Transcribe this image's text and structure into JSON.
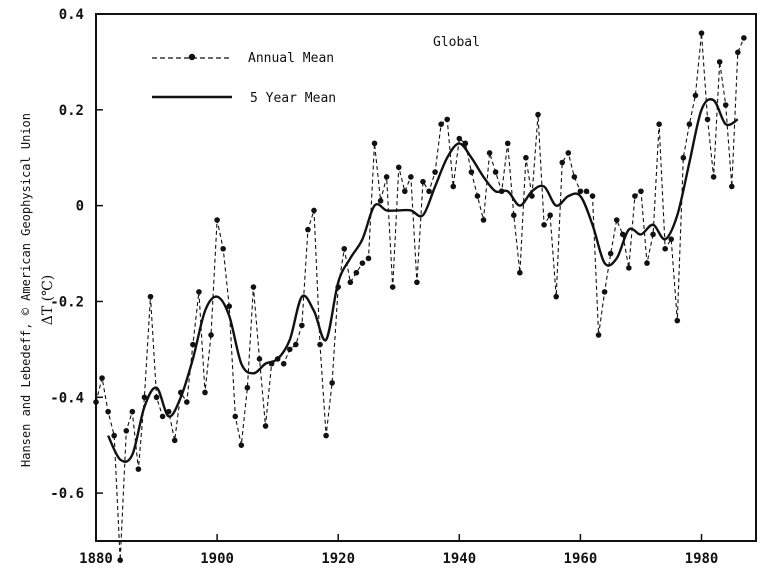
{
  "chart_data": {
    "type": "line",
    "title": "Global",
    "ylabel_credit": "Hansen and Lebedeff, © American Geophysical Union",
    "ylabel": "ΔT (℃)",
    "xlim": [
      1880,
      1989
    ],
    "ylim": [
      -0.7,
      0.4
    ],
    "xticks": [
      1880,
      1900,
      1920,
      1940,
      1960,
      1980
    ],
    "xtick_labels": [
      "1880",
      "1900",
      "1920",
      "1940",
      "1960",
      "1980"
    ],
    "yticks": [
      0.4,
      0.2,
      0,
      -0.2,
      -0.4,
      -0.6
    ],
    "ytick_labels": [
      "0.4",
      "0.2",
      "0",
      "-0.2",
      "-0.4",
      "-0.6"
    ],
    "grid": false,
    "legend_position": "top-left",
    "series": [
      {
        "name": "Annual Mean",
        "style": "dashed-with-dots",
        "x": [
          1880,
          1881,
          1882,
          1883,
          1884,
          1885,
          1886,
          1887,
          1888,
          1889,
          1890,
          1891,
          1892,
          1893,
          1894,
          1895,
          1896,
          1897,
          1898,
          1899,
          1900,
          1901,
          1902,
          1903,
          1904,
          1905,
          1906,
          1907,
          1908,
          1909,
          1910,
          1911,
          1912,
          1913,
          1914,
          1915,
          1916,
          1917,
          1918,
          1919,
          1920,
          1921,
          1922,
          1923,
          1924,
          1925,
          1926,
          1927,
          1928,
          1929,
          1930,
          1931,
          1932,
          1933,
          1934,
          1935,
          1936,
          1937,
          1938,
          1939,
          1940,
          1941,
          1942,
          1943,
          1944,
          1945,
          1946,
          1947,
          1948,
          1949,
          1950,
          1951,
          1952,
          1953,
          1954,
          1955,
          1956,
          1957,
          1958,
          1959,
          1960,
          1961,
          1962,
          1963,
          1964,
          1965,
          1966,
          1967,
          1968,
          1969,
          1970,
          1971,
          1972,
          1973,
          1974,
          1975,
          1976,
          1977,
          1978,
          1979,
          1980,
          1981,
          1982,
          1983,
          1984,
          1985,
          1986,
          1987
        ],
        "values": [
          -0.41,
          -0.36,
          -0.43,
          -0.48,
          -0.74,
          -0.47,
          -0.43,
          -0.55,
          -0.4,
          -0.19,
          -0.4,
          -0.44,
          -0.43,
          -0.49,
          -0.39,
          -0.41,
          -0.29,
          -0.18,
          -0.39,
          -0.27,
          -0.03,
          -0.09,
          -0.21,
          -0.44,
          -0.5,
          -0.38,
          -0.17,
          -0.32,
          -0.46,
          -0.33,
          -0.32,
          -0.33,
          -0.3,
          -0.29,
          -0.25,
          -0.05,
          -0.01,
          -0.29,
          -0.48,
          -0.37,
          -0.17,
          -0.09,
          -0.16,
          -0.14,
          -0.12,
          -0.11,
          0.13,
          0.01,
          0.06,
          -0.17,
          0.08,
          0.03,
          0.06,
          -0.16,
          0.05,
          0.03,
          0.07,
          0.17,
          0.18,
          0.04,
          0.14,
          0.13,
          0.07,
          0.02,
          -0.03,
          0.11,
          0.07,
          0.03,
          0.13,
          -0.02,
          -0.14,
          0.1,
          0.02,
          0.19,
          -0.04,
          -0.02,
          -0.19,
          0.09,
          0.11,
          0.06,
          0.03,
          0.03,
          0.02,
          -0.27,
          -0.18,
          -0.1,
          -0.03,
          -0.06,
          -0.13,
          0.02,
          0.03,
          -0.12,
          -0.06,
          0.17,
          -0.09,
          -0.07,
          -0.24,
          0.1,
          0.17,
          0.23,
          0.36,
          0.18,
          0.06,
          0.3,
          0.21,
          0.04,
          0.32,
          0.35
        ]
      },
      {
        "name": "5 Year Mean",
        "style": "solid",
        "x": [
          1882,
          1884,
          1886,
          1888,
          1890,
          1892,
          1894,
          1896,
          1898,
          1900,
          1902,
          1904,
          1906,
          1908,
          1910,
          1912,
          1914,
          1916,
          1918,
          1920,
          1922,
          1924,
          1926,
          1928,
          1930,
          1932,
          1934,
          1936,
          1938,
          1940,
          1942,
          1944,
          1946,
          1948,
          1950,
          1952,
          1954,
          1956,
          1958,
          1960,
          1962,
          1964,
          1966,
          1968,
          1970,
          1972,
          1974,
          1976,
          1978,
          1980,
          1982,
          1984,
          1986
        ],
        "values": [
          -0.48,
          -0.53,
          -0.52,
          -0.42,
          -0.38,
          -0.44,
          -0.4,
          -0.32,
          -0.22,
          -0.19,
          -0.23,
          -0.33,
          -0.35,
          -0.33,
          -0.32,
          -0.28,
          -0.19,
          -0.22,
          -0.28,
          -0.16,
          -0.11,
          -0.07,
          0.0,
          -0.01,
          -0.01,
          -0.01,
          -0.02,
          0.04,
          0.1,
          0.13,
          0.1,
          0.06,
          0.03,
          0.03,
          0.0,
          0.03,
          0.04,
          0.0,
          0.02,
          0.02,
          -0.04,
          -0.12,
          -0.11,
          -0.05,
          -0.06,
          -0.04,
          -0.07,
          -0.02,
          0.09,
          0.2,
          0.22,
          0.17,
          0.18
        ]
      }
    ]
  }
}
